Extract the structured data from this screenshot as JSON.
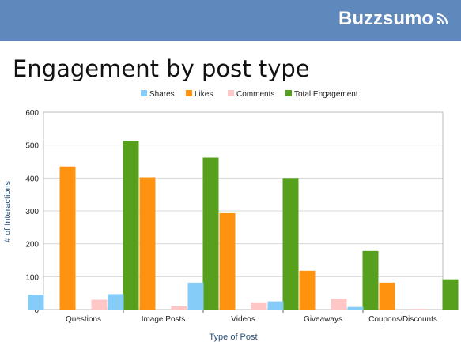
{
  "brand": {
    "name": "Buzzsumo",
    "icon": "wifi-signal-icon"
  },
  "slide": {
    "title": "Engagement by post type"
  },
  "chart_data": {
    "type": "bar",
    "title": "",
    "xlabel": "Type of Post",
    "ylabel": "# of Interactions",
    "ylim": [
      0,
      600
    ],
    "yticks": [
      0,
      100,
      200,
      300,
      400,
      500,
      600
    ],
    "grid": true,
    "legend": "top",
    "categories": [
      "Questions",
      "Image Posts",
      "Videos",
      "Giveaways",
      "Coupons/Discounts"
    ],
    "series": [
      {
        "name": "Shares",
        "color": "#85ccf9",
        "values": [
          45,
          47,
          82,
          25,
          8
        ]
      },
      {
        "name": "Likes",
        "color": "#ff930f",
        "values": [
          435,
          402,
          293,
          118,
          82
        ]
      },
      {
        "name": "Comments",
        "color": "#ffc6c6",
        "values": [
          30,
          10,
          22,
          33,
          2
        ]
      },
      {
        "name": "Total Engagement",
        "color": "#56a01e",
        "values": [
          513,
          462,
          400,
          178,
          92
        ]
      }
    ]
  }
}
